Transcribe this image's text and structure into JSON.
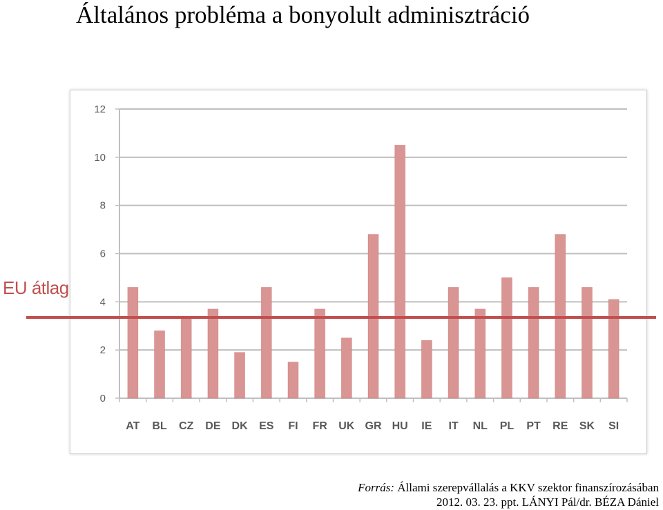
{
  "title": "Általános probléma a bonyolult adminisztráció",
  "reference_line": {
    "label": "EU átlag",
    "value": 3.35,
    "color": "#c0504d"
  },
  "source": {
    "prefix": "Forrás:",
    "line1": "Állami szerepvállalás a KKV szektor finanszírozásában",
    "line2": "2012. 03. 23.  ppt. LÁNYI Pál/dr. BÉZA Dániel"
  },
  "chart_data": {
    "type": "bar",
    "categories": [
      "AT",
      "BL",
      "CZ",
      "DE",
      "DK",
      "ES",
      "FI",
      "FR",
      "UK",
      "GR",
      "HU",
      "IE",
      "IT",
      "NL",
      "PL",
      "PT",
      "RE",
      "SK",
      "SI"
    ],
    "values": [
      4.6,
      2.8,
      3.3,
      3.7,
      1.9,
      4.6,
      1.5,
      3.7,
      2.5,
      6.8,
      10.5,
      2.4,
      4.6,
      3.7,
      5.0,
      4.6,
      6.8,
      4.6,
      4.1
    ],
    "ylim": [
      0,
      12
    ],
    "yticks": [
      0,
      2,
      4,
      6,
      8,
      10,
      12
    ],
    "grid": true,
    "bar_color": "#d99594",
    "bar_edge_color": "#c0504d",
    "title": "",
    "xlabel": "",
    "ylabel": ""
  }
}
